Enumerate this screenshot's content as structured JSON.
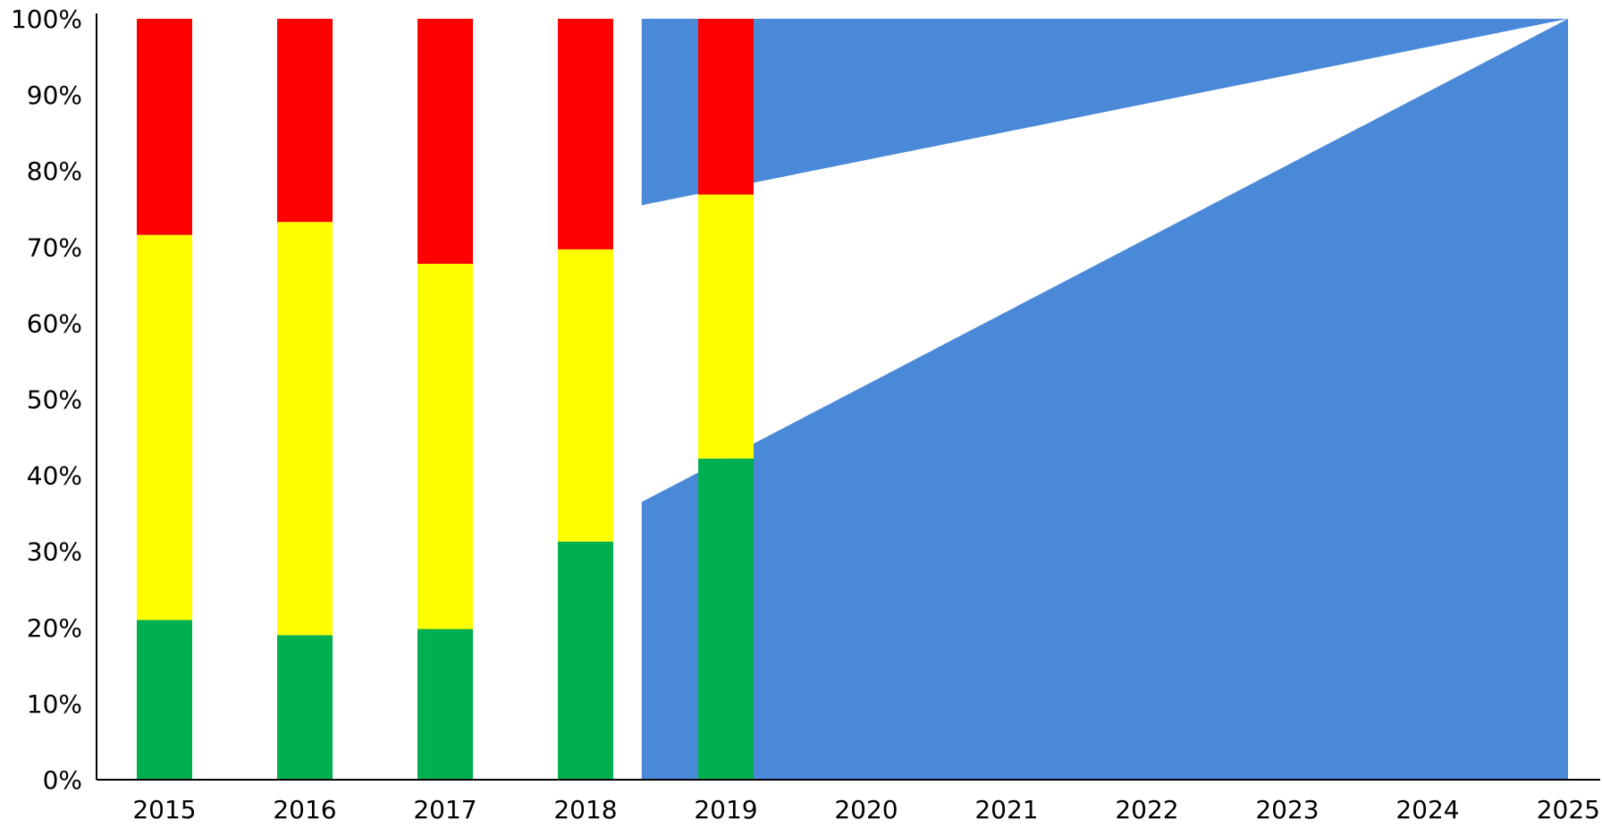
{
  "chart_data": {
    "type": "bar",
    "stacked": true,
    "title": "",
    "xlabel": "",
    "ylabel": "",
    "ylim": [
      0,
      100
    ],
    "y_ticks": [
      0,
      10,
      20,
      30,
      40,
      50,
      60,
      70,
      80,
      90,
      100
    ],
    "y_tick_labels": [
      "0%",
      "10%",
      "20%",
      "30%",
      "40%",
      "50%",
      "60%",
      "70%",
      "80%",
      "90%",
      "100%"
    ],
    "x_tick_labels": [
      "2015",
      "2016",
      "2017",
      "2018",
      "2019",
      "2020",
      "2021",
      "2022",
      "2023",
      "2024",
      "2025"
    ],
    "categories": [
      "2015",
      "2016",
      "2017",
      "2018",
      "2019"
    ],
    "series": [
      {
        "values": [
          21,
          19,
          19.8,
          31.3,
          42.2
        ],
        "color": "#00b050"
      },
      {
        "values": [
          50.6,
          54.3,
          48,
          38.4,
          34.7
        ],
        "color": "#ffff00"
      },
      {
        "values": [
          28.4,
          26.7,
          32.2,
          30.3,
          23.1
        ],
        "color": "#ff0000"
      }
    ],
    "target_area": {
      "color": "#4a89d8",
      "x_start": 2018.4,
      "x_end": 2025,
      "lower_bound_start": 36.5,
      "upper_bound_start": 75.5,
      "converge_value": 100
    },
    "grid": false,
    "legend": "none"
  }
}
